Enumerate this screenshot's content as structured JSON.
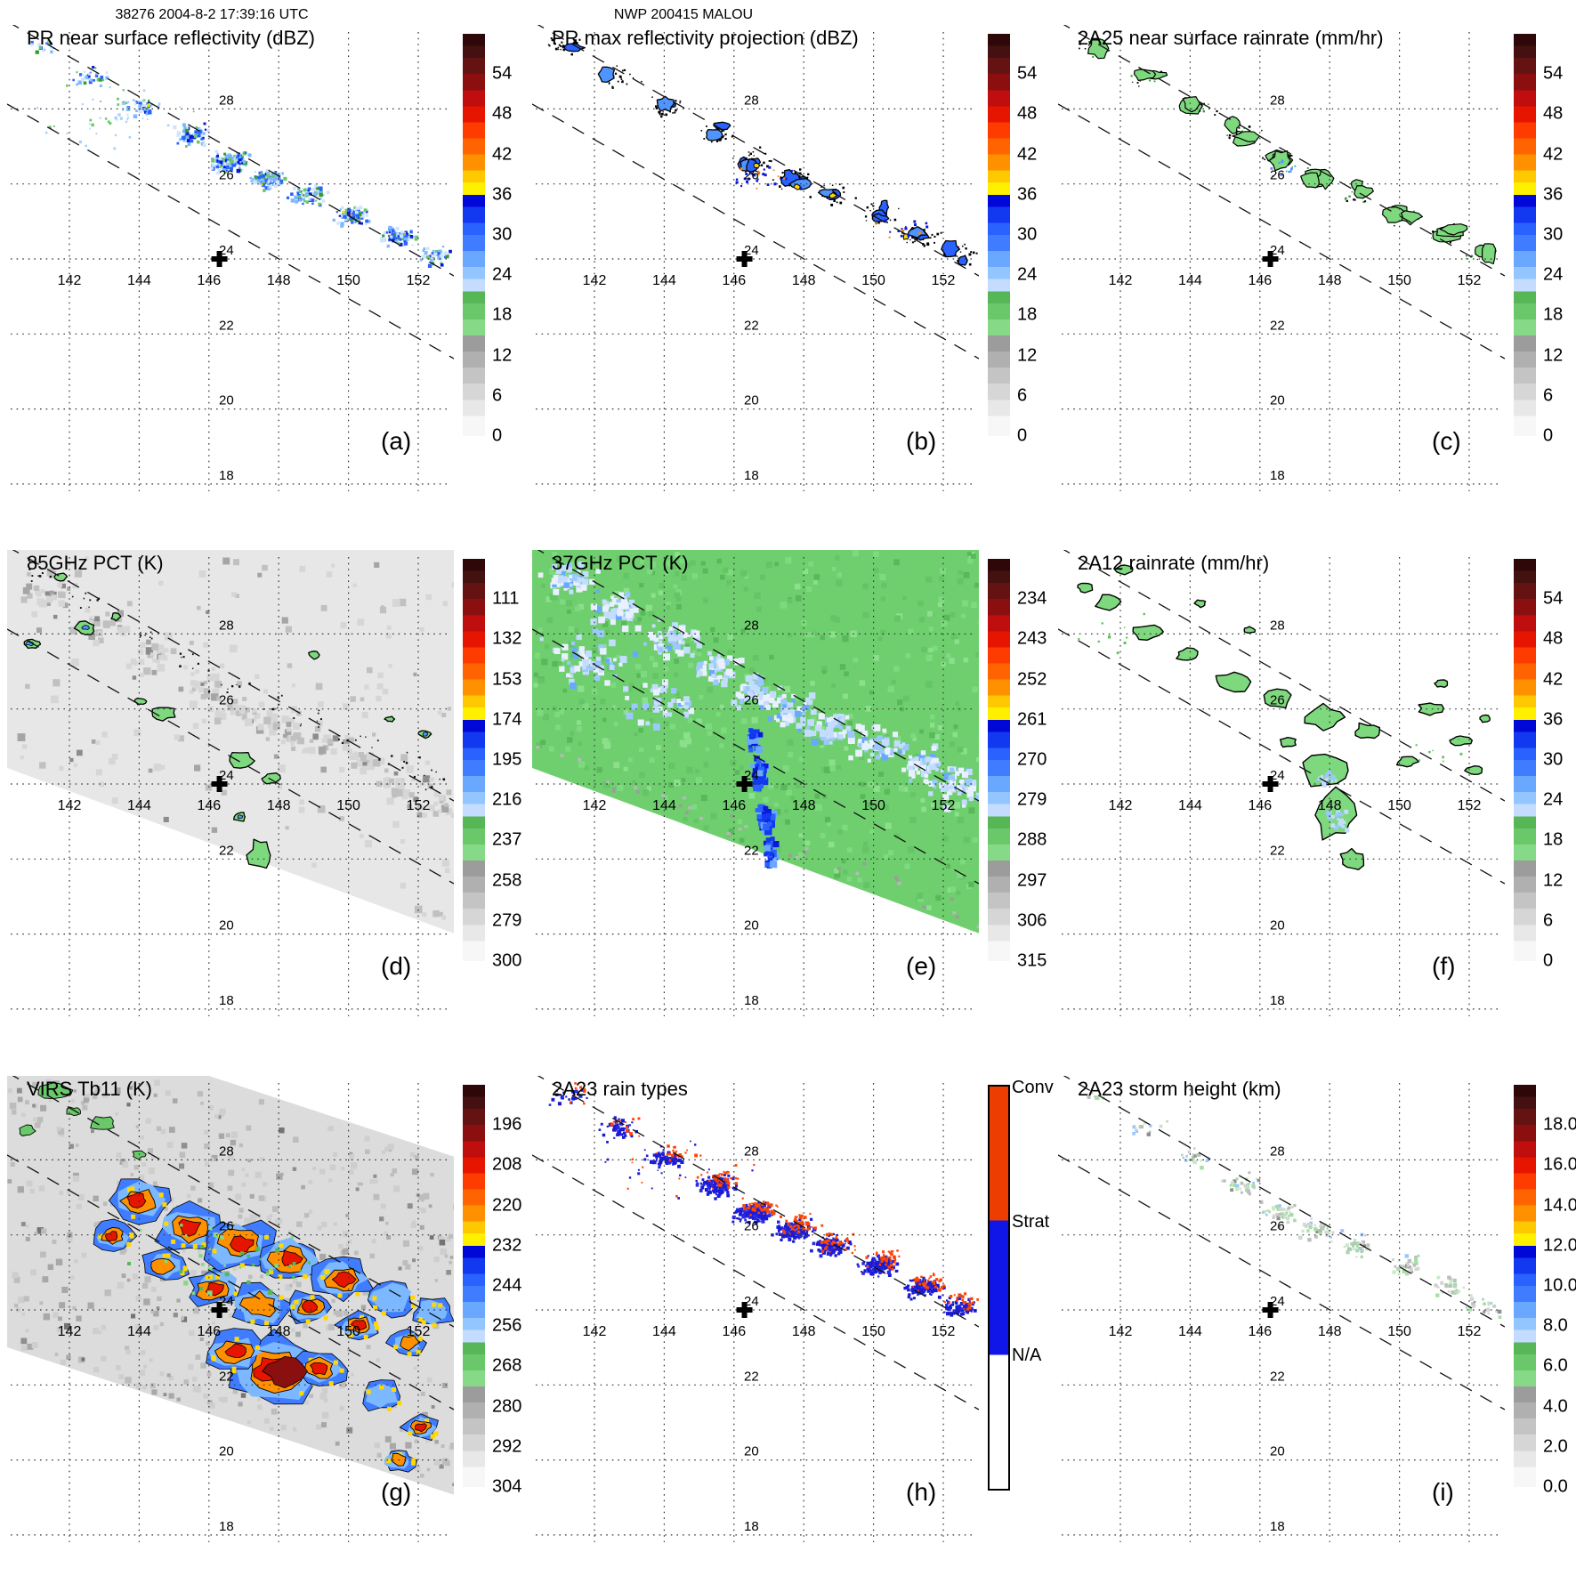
{
  "figure": {
    "timestamp_header": "38276 2004-8-2 17:39:16 UTC",
    "storm_header": "NWP 200415 MALOU"
  },
  "chart_data": {
    "type": "heatmap",
    "description": "3x3 grid of satellite swath maps for typhoon NWP 200415 MALOU, each with lon/lat dotted graticule, dashed PR swath edge lines, storm-center cross, panel letter and vertical colorbar",
    "geo": {
      "lon_ticks": [
        142,
        144,
        146,
        148,
        150,
        152
      ],
      "lat_ticks": [
        28,
        26,
        24,
        22,
        20,
        18
      ],
      "storm_center": {
        "lon": 146.3,
        "lat": 24
      }
    },
    "colorbar_palette": [
      [
        3,
        "#2e0808"
      ],
      [
        6,
        "#451010"
      ],
      [
        10,
        "#641212"
      ],
      [
        14,
        "#8c0f0f"
      ],
      [
        18,
        "#c00d0d"
      ],
      [
        22,
        "#e51500"
      ],
      [
        26,
        "#ff3c00"
      ],
      [
        30,
        "#ff6400"
      ],
      [
        34,
        "#ff9000"
      ],
      [
        37,
        "#ffc800"
      ],
      [
        40,
        "#fff000"
      ],
      [
        43,
        "#0008d8"
      ],
      [
        47,
        "#1238f0"
      ],
      [
        50,
        "#2a62ff"
      ],
      [
        54,
        "#3f7cff"
      ],
      [
        58,
        "#6aa8ff"
      ],
      [
        61,
        "#93c6ff"
      ],
      [
        64,
        "#c4dcff"
      ],
      [
        67,
        "#57b757"
      ],
      [
        71,
        "#6ac86a"
      ],
      [
        75,
        "#86d986"
      ],
      [
        79,
        "#9c9c9c"
      ],
      [
        83,
        "#b0b0b0"
      ],
      [
        87,
        "#c4c4c4"
      ],
      [
        91,
        "#d6d6d6"
      ],
      [
        95,
        "#e8e8e8"
      ],
      [
        100,
        "#f7f7f7"
      ]
    ],
    "panels": [
      {
        "id": "a",
        "letter": "(a)",
        "title": "PR near surface reflectivity (dBZ)",
        "unit": "dBZ",
        "colorbar_ticks": [
          "54",
          "48",
          "42",
          "36",
          "30",
          "24",
          "18",
          "12",
          "6",
          "0"
        ]
      },
      {
        "id": "b",
        "letter": "(b)",
        "title": "PR max reflectivity projection (dBZ)",
        "unit": "dBZ",
        "colorbar_ticks": [
          "54",
          "48",
          "42",
          "36",
          "30",
          "24",
          "18",
          "12",
          "6",
          "0"
        ]
      },
      {
        "id": "c",
        "letter": "(c)",
        "title": "2A25 near surface rainrate (mm/hr)",
        "unit": "mm/hr",
        "colorbar_ticks": [
          "54",
          "48",
          "42",
          "36",
          "30",
          "24",
          "18",
          "12",
          "6",
          "0"
        ]
      },
      {
        "id": "d",
        "letter": "(d)",
        "title": "85GHz PCT (K)",
        "unit": "K",
        "colorbar_ticks": [
          "111",
          "132",
          "153",
          "174",
          "195",
          "216",
          "237",
          "258",
          "279",
          "300"
        ]
      },
      {
        "id": "e",
        "letter": "(e)",
        "title": "37GHz PCT (K)",
        "unit": "K",
        "colorbar_ticks": [
          "234",
          "243",
          "252",
          "261",
          "270",
          "279",
          "288",
          "297",
          "306",
          "315"
        ]
      },
      {
        "id": "f",
        "letter": "(f)",
        "title": "2A12 rainrate (mm/hr)",
        "unit": "mm/hr",
        "colorbar_ticks": [
          "54",
          "48",
          "42",
          "36",
          "30",
          "24",
          "18",
          "12",
          "6",
          "0"
        ]
      },
      {
        "id": "g",
        "letter": "(g)",
        "title": "VIRS Tb11 (K)",
        "unit": "K",
        "colorbar_ticks": [
          "196",
          "208",
          "220",
          "232",
          "244",
          "256",
          "268",
          "280",
          "292",
          "304"
        ]
      },
      {
        "id": "h",
        "letter": "(h)",
        "title": "2A23 rain types",
        "categories": [
          {
            "label": "Conv",
            "color": "#ee3d00"
          },
          {
            "label": "Strat",
            "color": "#1016e8"
          },
          {
            "label": "N/A",
            "color": "#ffffff"
          }
        ]
      },
      {
        "id": "i",
        "letter": "(i)",
        "title": "2A23 storm height (km)",
        "unit": "km",
        "colorbar_ticks": [
          "18.0",
          "16.0",
          "14.0",
          "12.0",
          "10.0",
          "8.0",
          "6.0",
          "4.0",
          "2.0",
          "0.0"
        ]
      }
    ]
  }
}
